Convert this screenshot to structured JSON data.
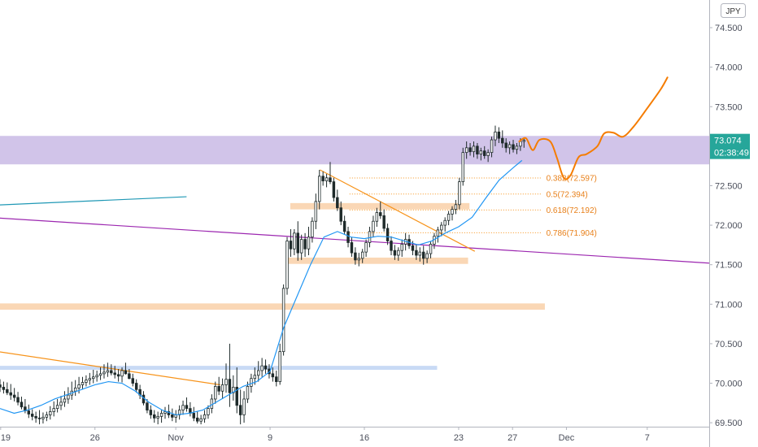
{
  "chart_data": {
    "type": "candlestick",
    "currency_label": "JPY",
    "y_ticks": [
      "74.500",
      "74.000",
      "73.500",
      "73.000",
      "72.500",
      "72.000",
      "71.500",
      "71.000",
      "70.500",
      "70.000",
      "69.500"
    ],
    "y_tick_values": [
      74.5,
      74.0,
      73.5,
      73.0,
      72.5,
      72.0,
      71.5,
      71.0,
      70.5,
      70.0,
      69.5
    ],
    "ylim": [
      69.45,
      74.85
    ],
    "x_ticks": [
      "19",
      "26",
      "Nov",
      "9",
      "16",
      "23",
      "27",
      "Dec",
      "7"
    ],
    "x_tick_days": [
      0,
      7,
      13,
      20,
      27,
      34,
      38,
      42,
      48
    ],
    "xlim_days": [
      -0.05,
      52.6
    ],
    "current_price": "73.074",
    "current_price_value": 73.074,
    "countdown": "02:38:49",
    "colors": {
      "up": "#26a69a",
      "down": "#ef5350",
      "candle": "#1e2a2a",
      "zone_purple": "#d1c4e9",
      "zone_orange": "#fad7b5",
      "zone_blue": "#c8daf5",
      "ma": "#2196f3",
      "trend_purple": "#9c27b0",
      "trend_orange": "#f7931a",
      "teal_line": "#1f98b5",
      "projection": "#f57c00",
      "price_tag": "#26a69a"
    },
    "fib_levels": [
      {
        "label": "0.382(72.597)",
        "price": 72.597
      },
      {
        "label": "0.5(72.394)",
        "price": 72.394
      },
      {
        "label": "0.618(72.192)",
        "price": 72.192
      },
      {
        "label": "0.786(71.904)",
        "price": 71.904
      }
    ],
    "zones": [
      {
        "kind": "purple",
        "day_from": -1,
        "day_to": 52.6,
        "low": 72.77,
        "high": 73.13
      },
      {
        "kind": "orange",
        "day_from": 21.5,
        "day_to": 34.8,
        "low": 72.2,
        "high": 72.28
      },
      {
        "kind": "orange",
        "day_from": 21.3,
        "day_to": 34.7,
        "low": 71.51,
        "high": 71.59
      },
      {
        "kind": "orange",
        "day_from": -1,
        "day_to": 40.4,
        "low": 70.93,
        "high": 71.01
      },
      {
        "kind": "blue",
        "day_from": -1,
        "day_to": 32.4,
        "low": 70.17,
        "high": 70.22
      }
    ],
    "lines": [
      {
        "kind": "teal",
        "points": [
          [
            -1,
            72.25
          ],
          [
            13.8,
            72.36
          ]
        ]
      },
      {
        "kind": "purple",
        "points": [
          [
            -1,
            72.1
          ],
          [
            52.6,
            71.52
          ]
        ]
      },
      {
        "kind": "orange",
        "points": [
          [
            -1,
            70.42
          ],
          [
            16.3,
            69.98
          ]
        ]
      },
      {
        "kind": "orange",
        "points": [
          [
            23.7,
            72.7
          ],
          [
            35.2,
            71.67
          ]
        ]
      }
    ],
    "projection": [
      [
        38.5,
        73.06
      ],
      [
        39,
        73.1
      ],
      [
        39.5,
        72.95
      ],
      [
        40,
        73.08
      ],
      [
        40.8,
        73.06
      ],
      [
        41.3,
        72.85
      ],
      [
        41.8,
        72.6
      ],
      [
        42.3,
        72.63
      ],
      [
        42.9,
        72.86
      ],
      [
        43.5,
        72.9
      ],
      [
        44.3,
        73.0
      ],
      [
        44.8,
        73.16
      ],
      [
        45.5,
        73.17
      ],
      [
        46.2,
        73.12
      ],
      [
        47,
        73.25
      ],
      [
        48,
        73.48
      ],
      [
        49,
        73.72
      ],
      [
        49.5,
        73.87
      ]
    ],
    "ma_values": [
      [
        20,
        70.15
      ],
      [
        21,
        70.7
      ],
      [
        22,
        71.1
      ],
      [
        23,
        71.5
      ],
      [
        24,
        71.85
      ],
      [
        25,
        71.92
      ],
      [
        26,
        71.85
      ],
      [
        27,
        71.83
      ],
      [
        28,
        71.86
      ],
      [
        29,
        71.85
      ],
      [
        30,
        71.8
      ],
      [
        31,
        71.75
      ],
      [
        32,
        71.8
      ],
      [
        33,
        71.9
      ],
      [
        34,
        71.98
      ],
      [
        35,
        72.1
      ],
      [
        36,
        72.34
      ],
      [
        37,
        72.57
      ],
      [
        38,
        72.72
      ],
      [
        38.7,
        72.82
      ]
    ],
    "candles": [
      {
        "o": 69.98,
        "h": 70.05,
        "l": 69.89,
        "c": 69.95
      },
      {
        "o": 69.95,
        "h": 70.02,
        "l": 69.87,
        "c": 69.92
      },
      {
        "o": 69.92,
        "h": 70.01,
        "l": 69.85,
        "c": 69.88
      },
      {
        "o": 69.88,
        "h": 69.99,
        "l": 69.79,
        "c": 69.85
      },
      {
        "o": 69.85,
        "h": 69.94,
        "l": 69.77,
        "c": 69.82
      },
      {
        "o": 69.82,
        "h": 69.89,
        "l": 69.72,
        "c": 69.76
      },
      {
        "o": 69.76,
        "h": 69.83,
        "l": 69.67,
        "c": 69.7
      },
      {
        "o": 69.7,
        "h": 69.8,
        "l": 69.62,
        "c": 69.65
      },
      {
        "o": 69.65,
        "h": 69.73,
        "l": 69.56,
        "c": 69.61
      },
      {
        "o": 69.61,
        "h": 69.67,
        "l": 69.53,
        "c": 69.58
      },
      {
        "o": 69.58,
        "h": 69.64,
        "l": 69.5,
        "c": 69.56
      },
      {
        "o": 69.56,
        "h": 69.66,
        "l": 69.48,
        "c": 69.55
      },
      {
        "o": 69.55,
        "h": 69.63,
        "l": 69.49,
        "c": 69.57
      },
      {
        "o": 69.57,
        "h": 69.64,
        "l": 69.52,
        "c": 69.6
      },
      {
        "o": 69.6,
        "h": 69.71,
        "l": 69.54,
        "c": 69.64
      },
      {
        "o": 69.64,
        "h": 69.77,
        "l": 69.58,
        "c": 69.68
      },
      {
        "o": 69.68,
        "h": 69.8,
        "l": 69.63,
        "c": 69.72
      },
      {
        "o": 69.72,
        "h": 69.84,
        "l": 69.66,
        "c": 69.76
      },
      {
        "o": 69.76,
        "h": 69.9,
        "l": 69.7,
        "c": 69.8
      },
      {
        "o": 69.8,
        "h": 69.95,
        "l": 69.74,
        "c": 69.85
      },
      {
        "o": 69.85,
        "h": 70.02,
        "l": 69.79,
        "c": 69.9
      },
      {
        "o": 69.9,
        "h": 70.04,
        "l": 69.84,
        "c": 69.94
      },
      {
        "o": 69.94,
        "h": 70.08,
        "l": 69.87,
        "c": 69.98
      },
      {
        "o": 69.98,
        "h": 70.08,
        "l": 69.92,
        "c": 70.01
      },
      {
        "o": 70.01,
        "h": 70.1,
        "l": 69.96,
        "c": 70.04
      },
      {
        "o": 70.04,
        "h": 70.13,
        "l": 69.98,
        "c": 70.06
      },
      {
        "o": 70.06,
        "h": 70.17,
        "l": 70.0,
        "c": 70.08
      },
      {
        "o": 70.08,
        "h": 70.16,
        "l": 70.02,
        "c": 70.1
      },
      {
        "o": 70.1,
        "h": 70.2,
        "l": 70.04,
        "c": 70.12
      },
      {
        "o": 70.12,
        "h": 70.24,
        "l": 70.06,
        "c": 70.14
      },
      {
        "o": 70.14,
        "h": 70.26,
        "l": 70.08,
        "c": 70.16
      },
      {
        "o": 70.16,
        "h": 70.24,
        "l": 70.1,
        "c": 70.13
      },
      {
        "o": 70.13,
        "h": 70.22,
        "l": 70.06,
        "c": 70.11
      },
      {
        "o": 70.11,
        "h": 70.18,
        "l": 70.02,
        "c": 70.09
      },
      {
        "o": 70.09,
        "h": 70.2,
        "l": 70.01,
        "c": 70.16
      },
      {
        "o": 70.16,
        "h": 70.26,
        "l": 70.11,
        "c": 70.12
      },
      {
        "o": 70.12,
        "h": 70.18,
        "l": 70.05,
        "c": 70.06
      },
      {
        "o": 70.06,
        "h": 70.12,
        "l": 69.96,
        "c": 70.0
      },
      {
        "o": 70.0,
        "h": 70.05,
        "l": 69.88,
        "c": 69.92
      },
      {
        "o": 69.92,
        "h": 69.98,
        "l": 69.8,
        "c": 69.85
      },
      {
        "o": 69.85,
        "h": 69.9,
        "l": 69.72,
        "c": 69.75
      },
      {
        "o": 69.75,
        "h": 69.8,
        "l": 69.62,
        "c": 69.66
      },
      {
        "o": 69.66,
        "h": 69.72,
        "l": 69.55,
        "c": 69.6
      },
      {
        "o": 69.6,
        "h": 69.66,
        "l": 69.5,
        "c": 69.56
      },
      {
        "o": 69.56,
        "h": 69.64,
        "l": 69.48,
        "c": 69.58
      },
      {
        "o": 69.58,
        "h": 69.66,
        "l": 69.5,
        "c": 69.62
      },
      {
        "o": 69.62,
        "h": 69.7,
        "l": 69.55,
        "c": 69.64
      },
      {
        "o": 69.64,
        "h": 69.73,
        "l": 69.56,
        "c": 69.6
      },
      {
        "o": 69.6,
        "h": 69.68,
        "l": 69.52,
        "c": 69.57
      },
      {
        "o": 69.57,
        "h": 69.66,
        "l": 69.5,
        "c": 69.6
      },
      {
        "o": 69.6,
        "h": 69.72,
        "l": 69.54,
        "c": 69.66
      },
      {
        "o": 69.66,
        "h": 69.78,
        "l": 69.6,
        "c": 69.72
      },
      {
        "o": 69.72,
        "h": 69.82,
        "l": 69.64,
        "c": 69.68
      },
      {
        "o": 69.68,
        "h": 69.76,
        "l": 69.58,
        "c": 69.62
      },
      {
        "o": 69.62,
        "h": 69.7,
        "l": 69.52,
        "c": 69.56
      },
      {
        "o": 69.56,
        "h": 69.64,
        "l": 69.49,
        "c": 69.52
      },
      {
        "o": 69.52,
        "h": 69.6,
        "l": 69.48,
        "c": 69.55
      },
      {
        "o": 69.55,
        "h": 69.66,
        "l": 69.5,
        "c": 69.6
      },
      {
        "o": 69.6,
        "h": 69.72,
        "l": 69.55,
        "c": 69.68
      },
      {
        "o": 69.68,
        "h": 69.86,
        "l": 69.62,
        "c": 69.8
      },
      {
        "o": 69.8,
        "h": 70.02,
        "l": 69.74,
        "c": 69.96
      },
      {
        "o": 69.96,
        "h": 70.08,
        "l": 69.85,
        "c": 69.9
      },
      {
        "o": 69.9,
        "h": 70.06,
        "l": 69.8,
        "c": 69.98
      },
      {
        "o": 69.98,
        "h": 70.25,
        "l": 69.88,
        "c": 70.05
      },
      {
        "o": 70.05,
        "h": 70.5,
        "l": 69.7,
        "c": 69.88
      },
      {
        "o": 69.88,
        "h": 70.1,
        "l": 69.78,
        "c": 69.95
      },
      {
        "o": 69.95,
        "h": 70.2,
        "l": 69.62,
        "c": 69.72
      },
      {
        "o": 69.72,
        "h": 69.92,
        "l": 69.48,
        "c": 69.6
      },
      {
        "o": 69.6,
        "h": 69.9,
        "l": 69.5,
        "c": 69.8
      },
      {
        "o": 69.8,
        "h": 70.02,
        "l": 69.75,
        "c": 69.96
      },
      {
        "o": 69.96,
        "h": 70.12,
        "l": 69.88,
        "c": 70.06
      },
      {
        "o": 70.06,
        "h": 70.2,
        "l": 69.98,
        "c": 70.1
      },
      {
        "o": 70.1,
        "h": 70.28,
        "l": 70.02,
        "c": 70.16
      },
      {
        "o": 70.16,
        "h": 70.32,
        "l": 70.08,
        "c": 70.22
      },
      {
        "o": 70.22,
        "h": 70.3,
        "l": 70.12,
        "c": 70.18
      },
      {
        "o": 70.18,
        "h": 70.24,
        "l": 70.06,
        "c": 70.12
      },
      {
        "o": 70.12,
        "h": 70.2,
        "l": 70.02,
        "c": 70.08
      },
      {
        "o": 70.08,
        "h": 70.16,
        "l": 69.96,
        "c": 70.02
      },
      {
        "o": 70.02,
        "h": 70.5,
        "l": 69.98,
        "c": 70.4
      },
      {
        "o": 70.4,
        "h": 71.25,
        "l": 70.35,
        "c": 71.2
      },
      {
        "o": 71.2,
        "h": 71.85,
        "l": 71.12,
        "c": 71.8
      },
      {
        "o": 71.8,
        "h": 71.95,
        "l": 71.6,
        "c": 71.7
      },
      {
        "o": 71.7,
        "h": 71.95,
        "l": 71.62,
        "c": 71.9
      },
      {
        "o": 71.9,
        "h": 72.05,
        "l": 71.55,
        "c": 71.65
      },
      {
        "o": 71.65,
        "h": 71.88,
        "l": 71.56,
        "c": 71.82
      },
      {
        "o": 71.82,
        "h": 71.9,
        "l": 71.6,
        "c": 71.7
      },
      {
        "o": 71.7,
        "h": 71.98,
        "l": 71.62,
        "c": 71.85
      },
      {
        "o": 71.85,
        "h": 72.1,
        "l": 71.78,
        "c": 72.05
      },
      {
        "o": 72.05,
        "h": 72.4,
        "l": 71.95,
        "c": 72.3
      },
      {
        "o": 72.3,
        "h": 72.7,
        "l": 72.2,
        "c": 72.62
      },
      {
        "o": 72.62,
        "h": 72.68,
        "l": 72.5,
        "c": 72.56
      },
      {
        "o": 72.56,
        "h": 72.65,
        "l": 72.48,
        "c": 72.6
      },
      {
        "o": 72.6,
        "h": 72.8,
        "l": 72.52,
        "c": 72.55
      },
      {
        "o": 72.55,
        "h": 72.6,
        "l": 72.3,
        "c": 72.35
      },
      {
        "o": 72.35,
        "h": 72.45,
        "l": 72.18,
        "c": 72.22
      },
      {
        "o": 72.22,
        "h": 72.3,
        "l": 72.0,
        "c": 72.05
      },
      {
        "o": 72.05,
        "h": 72.12,
        "l": 71.88,
        "c": 71.92
      },
      {
        "o": 71.92,
        "h": 71.98,
        "l": 71.72,
        "c": 71.78
      },
      {
        "o": 71.78,
        "h": 71.85,
        "l": 71.6,
        "c": 71.65
      },
      {
        "o": 71.65,
        "h": 71.72,
        "l": 71.5,
        "c": 71.56
      },
      {
        "o": 71.56,
        "h": 71.65,
        "l": 71.48,
        "c": 71.58
      },
      {
        "o": 71.58,
        "h": 71.7,
        "l": 71.52,
        "c": 71.66
      },
      {
        "o": 71.66,
        "h": 71.82,
        "l": 71.6,
        "c": 71.78
      },
      {
        "o": 71.78,
        "h": 71.98,
        "l": 71.72,
        "c": 71.92
      },
      {
        "o": 71.92,
        "h": 72.12,
        "l": 71.85,
        "c": 72.05
      },
      {
        "o": 72.05,
        "h": 72.22,
        "l": 71.98,
        "c": 72.16
      },
      {
        "o": 72.16,
        "h": 72.3,
        "l": 72.08,
        "c": 72.12
      },
      {
        "o": 72.12,
        "h": 72.2,
        "l": 71.92,
        "c": 71.96
      },
      {
        "o": 71.96,
        "h": 72.02,
        "l": 71.75,
        "c": 71.8
      },
      {
        "o": 71.8,
        "h": 71.86,
        "l": 71.62,
        "c": 71.68
      },
      {
        "o": 71.68,
        "h": 71.75,
        "l": 71.56,
        "c": 71.62
      },
      {
        "o": 71.62,
        "h": 71.72,
        "l": 71.55,
        "c": 71.68
      },
      {
        "o": 71.68,
        "h": 71.82,
        "l": 71.6,
        "c": 71.76
      },
      {
        "o": 71.76,
        "h": 71.9,
        "l": 71.68,
        "c": 71.82
      },
      {
        "o": 71.82,
        "h": 71.88,
        "l": 71.7,
        "c": 71.74
      },
      {
        "o": 71.74,
        "h": 71.8,
        "l": 71.62,
        "c": 71.68
      },
      {
        "o": 71.68,
        "h": 71.76,
        "l": 71.56,
        "c": 71.62
      },
      {
        "o": 71.62,
        "h": 71.72,
        "l": 71.54,
        "c": 71.66
      },
      {
        "o": 71.66,
        "h": 71.74,
        "l": 71.5,
        "c": 71.58
      },
      {
        "o": 71.58,
        "h": 71.68,
        "l": 71.52,
        "c": 71.64
      },
      {
        "o": 71.64,
        "h": 71.8,
        "l": 71.58,
        "c": 71.76
      },
      {
        "o": 71.76,
        "h": 71.9,
        "l": 71.7,
        "c": 71.86
      },
      {
        "o": 71.86,
        "h": 71.98,
        "l": 71.78,
        "c": 71.94
      },
      {
        "o": 71.94,
        "h": 72.04,
        "l": 71.86,
        "c": 72.0
      },
      {
        "o": 72.0,
        "h": 72.1,
        "l": 71.92,
        "c": 72.06
      },
      {
        "o": 72.06,
        "h": 72.18,
        "l": 72.0,
        "c": 72.14
      },
      {
        "o": 72.14,
        "h": 72.24,
        "l": 72.06,
        "c": 72.2
      },
      {
        "o": 72.2,
        "h": 72.32,
        "l": 72.14,
        "c": 72.26
      },
      {
        "o": 72.26,
        "h": 72.6,
        "l": 72.2,
        "c": 72.55
      },
      {
        "o": 72.55,
        "h": 72.98,
        "l": 72.5,
        "c": 72.92
      },
      {
        "o": 72.92,
        "h": 73.06,
        "l": 72.84,
        "c": 72.98
      },
      {
        "o": 72.98,
        "h": 73.04,
        "l": 72.88,
        "c": 72.93
      },
      {
        "o": 72.93,
        "h": 73.06,
        "l": 72.86,
        "c": 73.0
      },
      {
        "o": 73.0,
        "h": 73.04,
        "l": 72.84,
        "c": 72.9
      },
      {
        "o": 72.9,
        "h": 72.98,
        "l": 72.82,
        "c": 72.94
      },
      {
        "o": 72.94,
        "h": 73.0,
        "l": 72.84,
        "c": 72.88
      },
      {
        "o": 72.88,
        "h": 72.96,
        "l": 72.8,
        "c": 72.92
      },
      {
        "o": 72.92,
        "h": 73.12,
        "l": 72.86,
        "c": 73.08
      },
      {
        "o": 73.08,
        "h": 73.26,
        "l": 73.0,
        "c": 73.18
      },
      {
        "o": 73.18,
        "h": 73.24,
        "l": 73.04,
        "c": 73.1
      },
      {
        "o": 73.1,
        "h": 73.2,
        "l": 72.98,
        "c": 73.04
      },
      {
        "o": 73.04,
        "h": 73.1,
        "l": 72.92,
        "c": 72.98
      },
      {
        "o": 72.98,
        "h": 73.06,
        "l": 72.9,
        "c": 73.02
      },
      {
        "o": 73.02,
        "h": 73.08,
        "l": 72.92,
        "c": 72.96
      },
      {
        "o": 72.96,
        "h": 73.04,
        "l": 72.9,
        "c": 73.0
      },
      {
        "o": 73.0,
        "h": 73.1,
        "l": 72.94,
        "c": 73.06
      },
      {
        "o": 73.06,
        "h": 73.1,
        "l": 72.98,
        "c": 73.074
      }
    ]
  }
}
